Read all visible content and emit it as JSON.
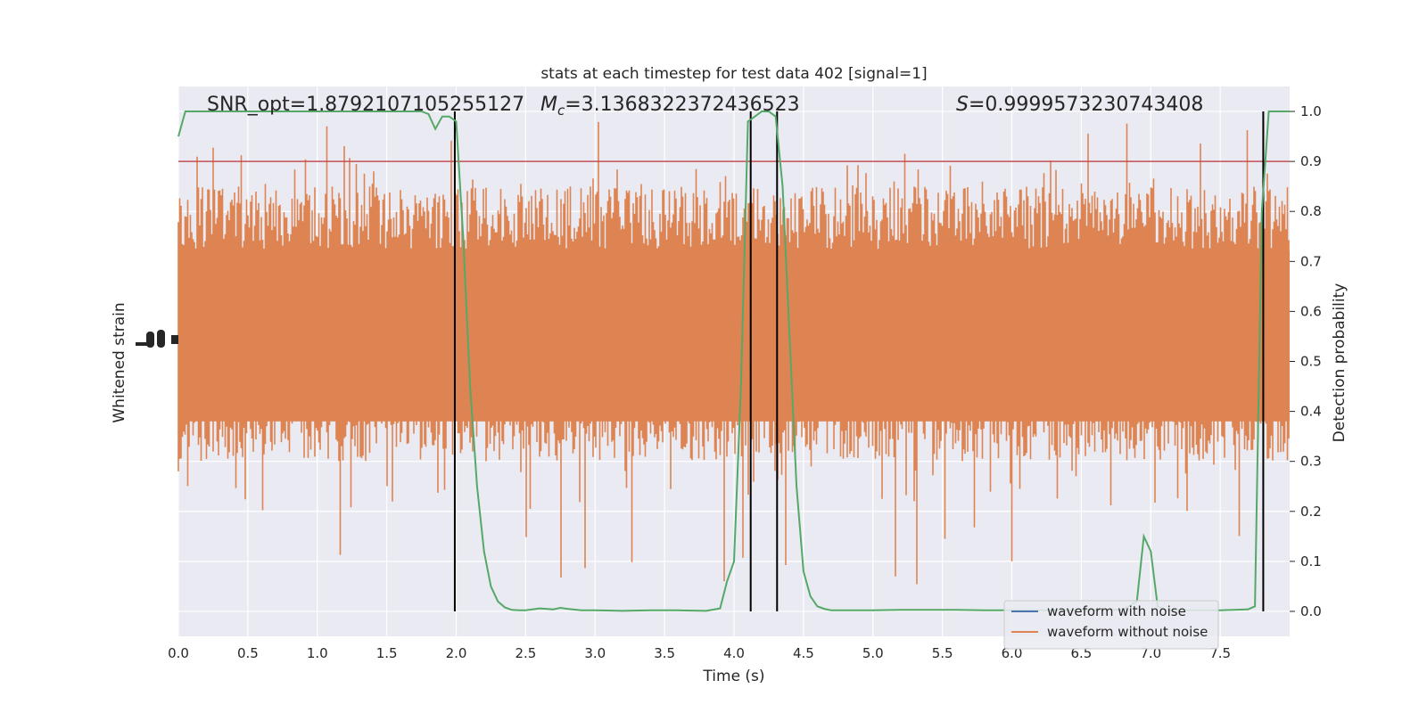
{
  "chart_data": {
    "type": "line",
    "title": "stats at each timestep for test data 402 [signal=1]",
    "xlabel": "Time (s)",
    "ylabel_left": "Whitened strain",
    "ylabel_right": "Detection probability",
    "xlim": [
      0.0,
      8.0
    ],
    "ylim_right": [
      -0.05,
      1.05
    ],
    "x_ticks": [
      "0.0",
      "0.5",
      "1.0",
      "1.5",
      "2.0",
      "2.5",
      "3.0",
      "3.5",
      "4.0",
      "4.5",
      "5.0",
      "5.5",
      "6.0",
      "6.5",
      "7.0",
      "7.5"
    ],
    "x_tick_values": [
      0.0,
      0.5,
      1.0,
      1.5,
      2.0,
      2.5,
      3.0,
      3.5,
      4.0,
      4.5,
      5.0,
      5.5,
      6.0,
      6.5,
      7.0,
      7.5
    ],
    "y_right_ticks": [
      "0.0",
      "0.1",
      "0.2",
      "0.3",
      "0.4",
      "0.5",
      "0.6",
      "0.7",
      "0.8",
      "0.9",
      "1.0"
    ],
    "y_right_tick_values": [
      0.0,
      0.1,
      0.2,
      0.3,
      0.4,
      0.5,
      0.6,
      0.7,
      0.8,
      0.9,
      1.0
    ],
    "annotations": {
      "snr": "SNR_opt=1.8792107105255127",
      "mc_prefix": "M",
      "mc_sub": "c",
      "mc_value": "=3.1368322372436523",
      "s_prefix": "S",
      "s_value": "=0.9999573230743408"
    },
    "threshold": 0.9,
    "vertical_lines": [
      1.99,
      4.12,
      4.31,
      7.81
    ],
    "legend": {
      "placement": "lower-right",
      "entries": [
        "waveform with noise",
        "waveform without noise"
      ]
    },
    "series": [
      {
        "name": "waveform with noise",
        "color": "#4c72b0",
        "note_values": "strain noise approx. uniform band"
      },
      {
        "name": "waveform without noise",
        "color": "#dd8452",
        "band_typical": [
          0.3,
          0.85
        ],
        "band_extreme": [
          0.0,
          1.0
        ]
      },
      {
        "name": "detection probability",
        "color": "#55a868",
        "x": [
          0.0,
          0.05,
          0.1,
          0.2,
          0.3,
          0.4,
          0.5,
          0.6,
          0.7,
          0.8,
          0.9,
          1.0,
          1.1,
          1.2,
          1.3,
          1.4,
          1.5,
          1.6,
          1.7,
          1.75,
          1.8,
          1.85,
          1.9,
          1.95,
          2.0,
          2.05,
          2.1,
          2.15,
          2.2,
          2.25,
          2.3,
          2.35,
          2.4,
          2.45,
          2.5,
          2.6,
          2.7,
          2.75,
          2.8,
          2.9,
          3.0,
          3.2,
          3.4,
          3.6,
          3.8,
          3.9,
          3.95,
          4.0,
          4.05,
          4.1,
          4.15,
          4.2,
          4.25,
          4.3,
          4.35,
          4.4,
          4.45,
          4.5,
          4.55,
          4.6,
          4.65,
          4.7,
          4.8,
          5.0,
          5.2,
          5.4,
          5.6,
          5.8,
          6.0,
          6.2,
          6.4,
          6.6,
          6.8,
          6.9,
          6.95,
          7.0,
          7.05,
          7.1,
          7.15,
          7.2,
          7.3,
          7.5,
          7.6,
          7.7,
          7.75,
          7.8,
          7.85,
          7.9,
          7.95,
          8.0
        ],
        "y": [
          0.95,
          1.0,
          1.0,
          1.0,
          1.0,
          1.0,
          1.0,
          1.0,
          1.0,
          1.0,
          1.0,
          1.0,
          1.0,
          1.0,
          1.0,
          1.0,
          1.0,
          1.0,
          1.0,
          1.0,
          0.995,
          0.965,
          0.99,
          0.99,
          0.98,
          0.75,
          0.45,
          0.25,
          0.12,
          0.05,
          0.02,
          0.008,
          0.003,
          0.002,
          0.002,
          0.006,
          0.004,
          0.007,
          0.005,
          0.002,
          0.002,
          0.001,
          0.002,
          0.002,
          0.001,
          0.006,
          0.06,
          0.1,
          0.45,
          0.98,
          0.99,
          1.0,
          1.0,
          0.99,
          0.85,
          0.55,
          0.25,
          0.08,
          0.03,
          0.01,
          0.005,
          0.002,
          0.002,
          0.002,
          0.003,
          0.003,
          0.003,
          0.002,
          0.002,
          0.002,
          0.002,
          0.003,
          0.003,
          0.02,
          0.15,
          0.12,
          0.01,
          0.003,
          0.002,
          0.002,
          0.002,
          0.002,
          0.003,
          0.004,
          0.01,
          0.8,
          1.0,
          1.0,
          1.0,
          1.0
        ]
      }
    ]
  }
}
